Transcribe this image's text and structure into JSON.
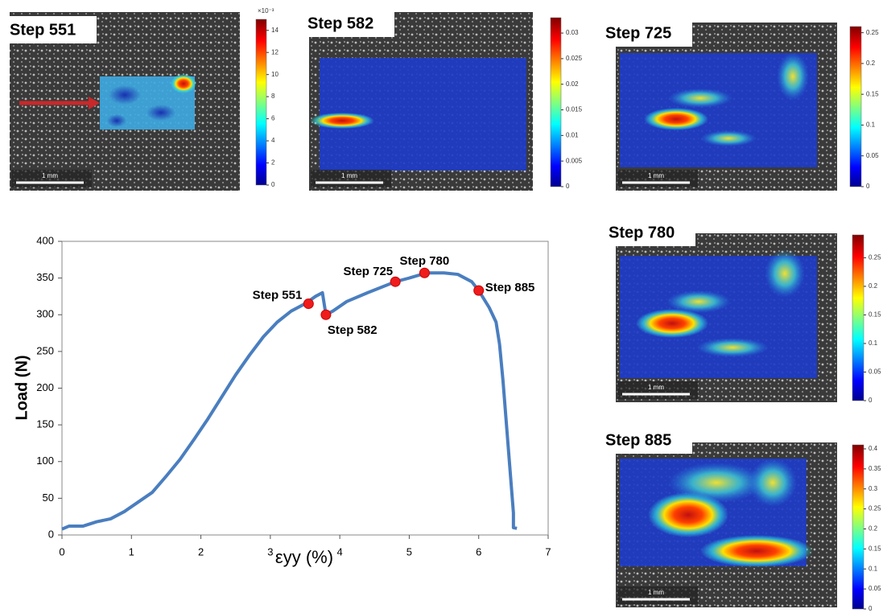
{
  "chart_data": {
    "type": "line",
    "y_label": "Load (N)",
    "x_label": "εyy (%)",
    "xlim": [
      0,
      7
    ],
    "xticks": [
      0,
      1,
      2,
      3,
      4,
      5,
      6,
      7
    ],
    "ylim": [
      0,
      400
    ],
    "yticks": [
      0,
      50,
      100,
      150,
      200,
      250,
      300,
      350,
      400
    ],
    "x": [
      0,
      0.1,
      0.3,
      0.5,
      0.7,
      0.9,
      1.1,
      1.3,
      1.5,
      1.7,
      1.9,
      2.1,
      2.3,
      2.5,
      2.7,
      2.9,
      3.1,
      3.3,
      3.5,
      3.65,
      3.75,
      3.8,
      3.9,
      4.1,
      4.4,
      4.8,
      5.0,
      5.25,
      5.5,
      5.7,
      5.9,
      6.0,
      6.15,
      6.25,
      6.3,
      6.35,
      6.4,
      6.45,
      6.5,
      6.5,
      6.55
    ],
    "series": [
      {
        "color": "#4a7ebf",
        "values": [
          8,
          12,
          12,
          18,
          22,
          32,
          45,
          58,
          80,
          103,
          130,
          158,
          188,
          218,
          245,
          270,
          290,
          305,
          315,
          325,
          330,
          300,
          305,
          318,
          330,
          345,
          350,
          357,
          357,
          355,
          345,
          333,
          310,
          290,
          260,
          210,
          150,
          90,
          30,
          10,
          9
        ]
      }
    ],
    "annotations": [
      {
        "label": "Step 551",
        "x": 3.55,
        "y": 315
      },
      {
        "label": "Step 582",
        "x": 3.8,
        "y": 300
      },
      {
        "label": "Step 725",
        "x": 4.8,
        "y": 345
      },
      {
        "label": "Step 780",
        "x": 5.22,
        "y": 357
      },
      {
        "label": "Step 885",
        "x": 6.0,
        "y": 333
      }
    ]
  },
  "panels": [
    {
      "title": "Step 551",
      "scale_label": "1 mm",
      "colorbar": {
        "exponent": "×10⁻³",
        "lim": [
          0,
          15
        ],
        "ticks": [
          0,
          2,
          4,
          6,
          8,
          10,
          12,
          14
        ]
      }
    },
    {
      "title": "Step 582",
      "scale_label": "1 mm",
      "colorbar": {
        "lim": [
          0,
          0.033
        ],
        "ticks": [
          0,
          0.005,
          0.01,
          0.015,
          0.02,
          0.025,
          0.03
        ]
      }
    },
    {
      "title": "Step 725",
      "scale_label": "1 mm",
      "colorbar": {
        "lim": [
          0,
          0.26
        ],
        "ticks": [
          0,
          0.05,
          0.1,
          0.15,
          0.2,
          0.25
        ]
      }
    },
    {
      "title": "Step 780",
      "scale_label": "1 mm",
      "colorbar": {
        "lim": [
          0,
          0.29
        ],
        "ticks": [
          0,
          0.05,
          0.1,
          0.15,
          0.2,
          0.25
        ]
      }
    },
    {
      "title": "Step 885",
      "scale_label": "1 mm",
      "colorbar": {
        "lim": [
          0,
          0.41
        ],
        "ticks": [
          0,
          0.05,
          0.1,
          0.15,
          0.2,
          0.25,
          0.3,
          0.35,
          0.4
        ]
      }
    }
  ]
}
